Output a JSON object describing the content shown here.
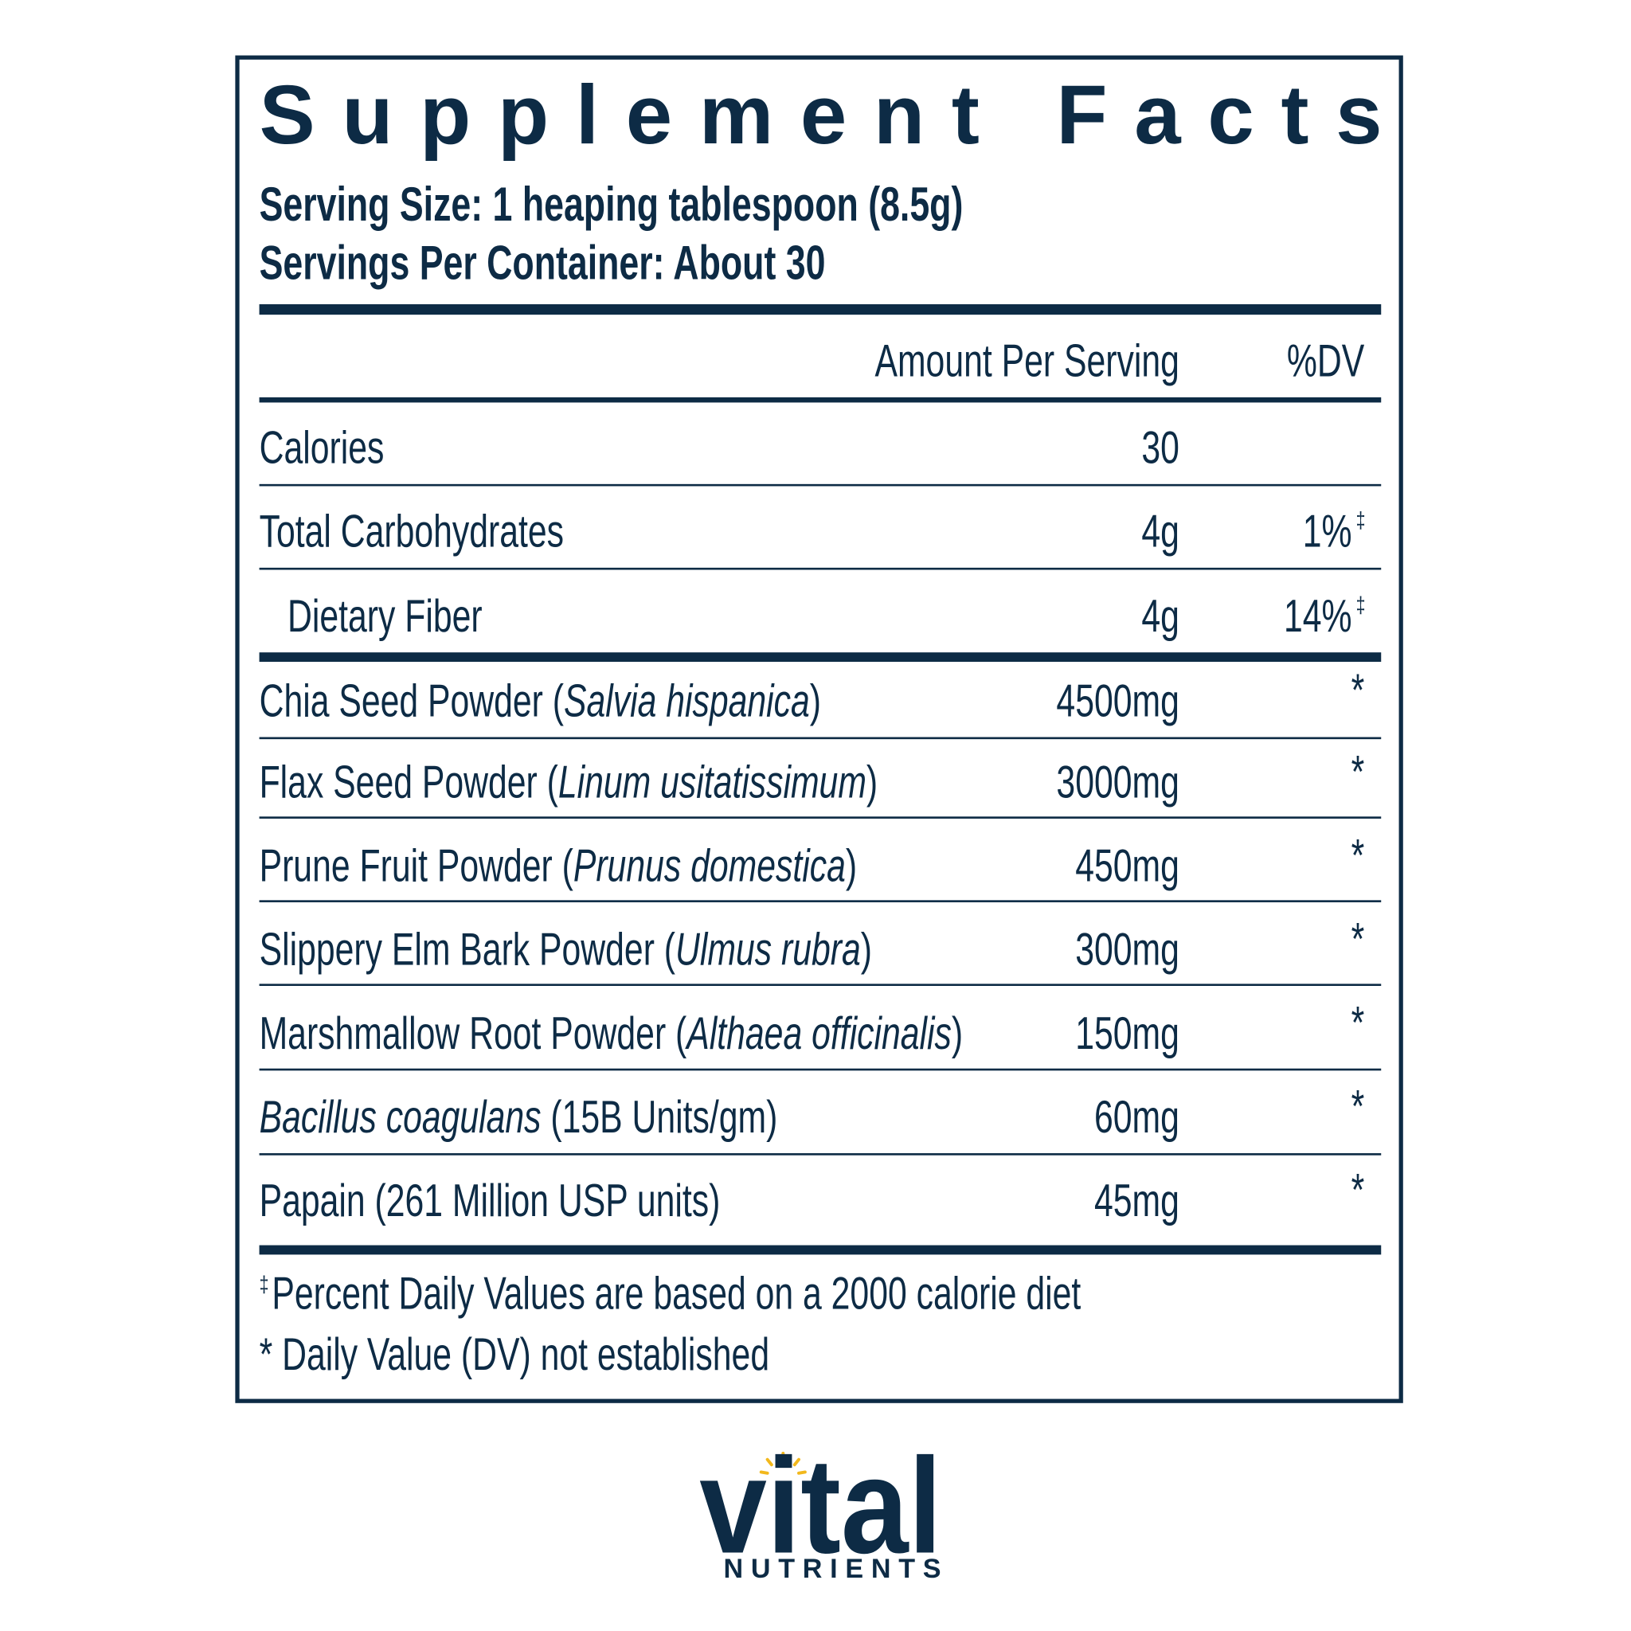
{
  "header": {
    "title": "Supplement Facts",
    "serving_size": "Serving Size: 1 heaping tablespoon (8.5g)",
    "servings_per_container": "Servings Per Container: About 30"
  },
  "table": {
    "columns": [
      "Amount Per Serving",
      "%DV"
    ],
    "rows": [
      {
        "name": [
          {
            "text": "Calories"
          }
        ],
        "amount": "30"
      },
      {
        "name": [
          {
            "text": "Total Carbohydrates"
          }
        ],
        "amount": "4g",
        "dv": "1%",
        "dv_mark": "‡"
      },
      {
        "name": [
          {
            "text": "Dietary Fiber"
          }
        ],
        "indent": true,
        "amount": "4g",
        "dv": "14%",
        "dv_mark": "‡"
      },
      {
        "name": [
          {
            "text": "Chia Seed Powder ("
          },
          {
            "text": "Salvia hispanica",
            "italic": true
          },
          {
            "text": ")"
          }
        ],
        "amount": "4500mg",
        "dv": "*"
      },
      {
        "name": [
          {
            "text": "Flax Seed Powder ("
          },
          {
            "text": "Linum usitatissimum",
            "italic": true
          },
          {
            "text": ")"
          }
        ],
        "amount": "3000mg",
        "dv": "*"
      },
      {
        "name": [
          {
            "text": "Prune Fruit Powder ("
          },
          {
            "text": "Prunus domestica",
            "italic": true
          },
          {
            "text": ")"
          }
        ],
        "amount": "450mg",
        "dv": "*"
      },
      {
        "name": [
          {
            "text": "Slippery Elm Bark Powder ("
          },
          {
            "text": "Ulmus rubra",
            "italic": true
          },
          {
            "text": ")"
          }
        ],
        "amount": "300mg",
        "dv": "*"
      },
      {
        "name": [
          {
            "text": "Marshmallow Root Powder ("
          },
          {
            "text": "Althaea officinalis",
            "italic": true
          },
          {
            "text": ")"
          }
        ],
        "amount": "150mg",
        "dv": "*"
      },
      {
        "name": [
          {
            "text": "Bacillus coagulans",
            "italic": true
          },
          {
            "text": " (15B Units/gm)"
          }
        ],
        "amount": "60mg",
        "dv": "*"
      },
      {
        "name": [
          {
            "text": "Papain (261 Million USP units)"
          }
        ],
        "amount": "45mg",
        "dv": "*"
      }
    ]
  },
  "footnotes": [
    {
      "mark": "‡",
      "text": " Percent Daily Values are based on a 2000 calorie diet"
    },
    {
      "text": "* Daily Value (DV) not established"
    }
  ],
  "logo": {
    "brand": "vital",
    "sub": "NUTRIENTS"
  }
}
